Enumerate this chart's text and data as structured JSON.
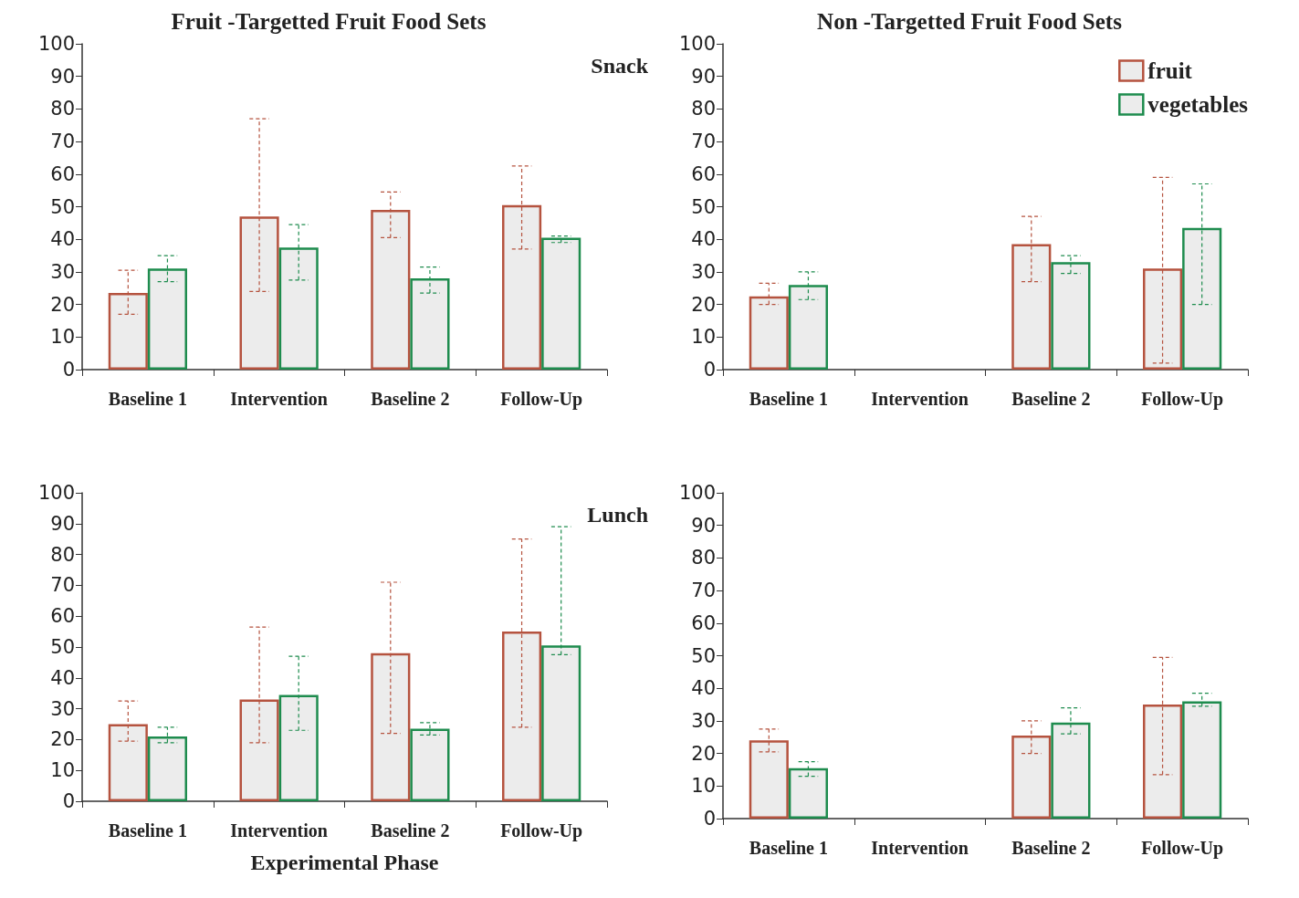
{
  "chart_data": [
    {
      "type": "bar",
      "title": "Fruit -Targetted Fruit Food Sets",
      "annotations": [
        "Snack"
      ],
      "categories": [
        "Baseline 1",
        "Intervention",
        "Baseline 2",
        "Follow-Up"
      ],
      "ylim": [
        0,
        100
      ],
      "yticks": [
        0,
        10,
        20,
        30,
        40,
        50,
        60,
        70,
        80,
        90,
        100
      ],
      "grid": false,
      "legend": false,
      "series": [
        {
          "color": "#b5533f",
          "values": [
            23.5,
            47,
            49,
            50.5
          ],
          "errors": [
            [
              17,
              30.5
            ],
            [
              24,
              77
            ],
            [
              40.5,
              54.5
            ],
            [
              37,
              62.5
            ]
          ]
        },
        {
          "color": "#1e8c4e",
          "values": [
            31,
            37.5,
            28,
            40.5
          ],
          "errors": [
            [
              27,
              35
            ],
            [
              27.5,
              44.5
            ],
            [
              23.5,
              31.5
            ],
            [
              39,
              41
            ]
          ]
        }
      ]
    },
    {
      "type": "bar",
      "title": "Non -Targetted Fruit Food Sets",
      "categories": [
        "Baseline 1",
        "Intervention",
        "Baseline 2",
        "Follow-Up"
      ],
      "ylim": [
        0,
        100
      ],
      "yticks": [
        0,
        10,
        20,
        30,
        40,
        50,
        60,
        70,
        80,
        90,
        100
      ],
      "grid": false,
      "legend": "top right",
      "series": [
        {
          "name": "fruit",
          "color": "#b5533f",
          "values": [
            22.5,
            null,
            38.5,
            31
          ],
          "errors": [
            [
              20,
              26.5
            ],
            null,
            [
              27,
              47
            ],
            [
              2,
              59
            ]
          ]
        },
        {
          "name": "vegetables",
          "color": "#1e8c4e",
          "values": [
            26,
            null,
            33,
            43.5
          ],
          "errors": [
            [
              21.5,
              30
            ],
            null,
            [
              29.5,
              35
            ],
            [
              20,
              57
            ]
          ]
        }
      ]
    },
    {
      "type": "bar",
      "annotations": [
        "Lunch"
      ],
      "xlabel": "Experimental Phase",
      "categories": [
        "Baseline 1",
        "Intervention",
        "Baseline 2",
        "Follow-Up"
      ],
      "ylim": [
        0,
        100
      ],
      "yticks": [
        0,
        10,
        20,
        30,
        40,
        50,
        60,
        70,
        80,
        90,
        100
      ],
      "grid": false,
      "legend": false,
      "series": [
        {
          "color": "#b5533f",
          "values": [
            25,
            33,
            48,
            55
          ],
          "errors": [
            [
              19.5,
              32.5
            ],
            [
              19,
              56.5
            ],
            [
              22,
              71
            ],
            [
              24,
              85
            ]
          ]
        },
        {
          "color": "#1e8c4e",
          "values": [
            21,
            34.5,
            23.5,
            50.5
          ],
          "errors": [
            [
              19,
              24
            ],
            [
              23,
              47
            ],
            [
              21.5,
              25.5
            ],
            [
              47.5,
              89
            ]
          ]
        }
      ]
    },
    {
      "type": "bar",
      "categories": [
        "Baseline 1",
        "Intervention",
        "Baseline 2",
        "Follow-Up"
      ],
      "ylim": [
        0,
        100
      ],
      "yticks": [
        0,
        10,
        20,
        30,
        40,
        50,
        60,
        70,
        80,
        90,
        100
      ],
      "grid": false,
      "legend": false,
      "series": [
        {
          "color": "#b5533f",
          "values": [
            24,
            null,
            25.5,
            35
          ],
          "errors": [
            [
              20.5,
              27.5
            ],
            null,
            [
              20,
              30
            ],
            [
              13.5,
              49.5
            ]
          ]
        },
        {
          "color": "#1e8c4e",
          "values": [
            15.5,
            null,
            29.5,
            36
          ],
          "errors": [
            [
              13,
              17.5
            ],
            null,
            [
              26,
              34
            ],
            [
              34.5,
              38.5
            ]
          ]
        }
      ]
    }
  ]
}
